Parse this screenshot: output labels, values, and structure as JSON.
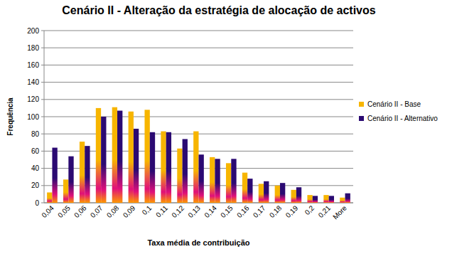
{
  "chart_data": {
    "type": "bar",
    "title": "Cenário II - Alteração da estratégia de alocação de activos",
    "x_label": "Taxa média de contribuição",
    "y_label": "Frequência",
    "categories": [
      "0,04",
      "0,05",
      "0,06",
      "0,07",
      "0,08",
      "0,09",
      "0,1",
      "0,11",
      "0,12",
      "0,13",
      "0,14",
      "0,15",
      "0,16",
      "0,17",
      "0,18",
      "0,19",
      "0,2",
      "0,21",
      "More"
    ],
    "series": [
      {
        "name": "Cenário II - Base",
        "color": "#f7b500",
        "values": [
          12,
          27,
          71,
          110,
          111,
          106,
          108,
          83,
          63,
          83,
          53,
          46,
          35,
          22,
          20,
          15,
          9,
          9,
          6
        ]
      },
      {
        "name": "Cenário II - Alternativo",
        "color": "#2b0a72",
        "values": [
          64,
          54,
          66,
          100,
          107,
          86,
          82,
          82,
          74,
          56,
          51,
          51,
          28,
          25,
          23,
          18,
          8,
          8,
          11
        ]
      }
    ],
    "ylim": [
      0,
      200
    ],
    "yticks": [
      0,
      20,
      40,
      60,
      80,
      100,
      120,
      140,
      160,
      180,
      200
    ],
    "grid": true,
    "legend": "right"
  }
}
